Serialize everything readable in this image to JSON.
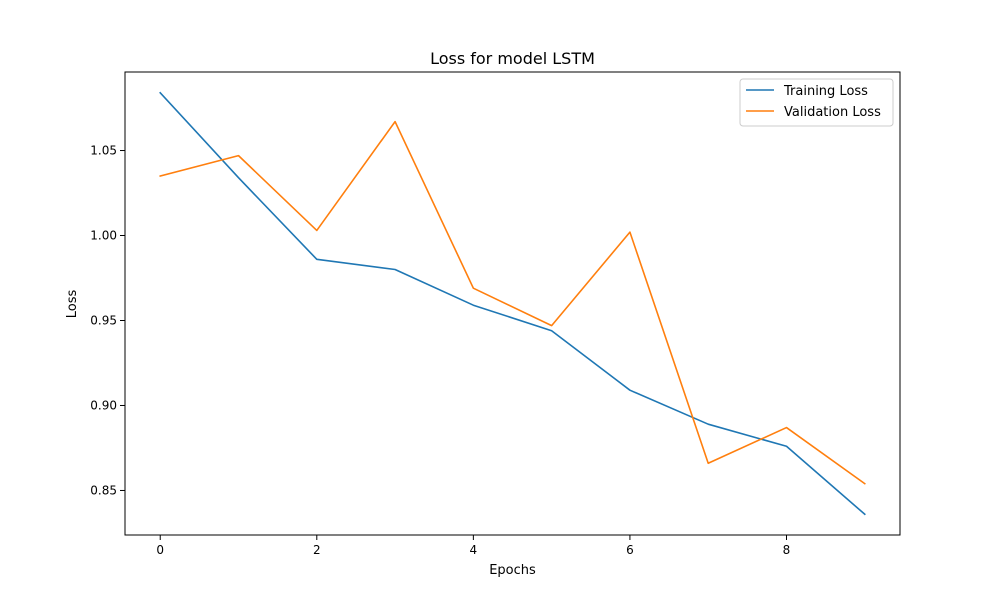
{
  "chart_data": {
    "type": "line",
    "title": "Loss for model LSTM",
    "xlabel": "Epochs",
    "ylabel": "Loss",
    "x": [
      0,
      1,
      2,
      3,
      4,
      5,
      6,
      7,
      8,
      9
    ],
    "series": [
      {
        "name": "Training Loss",
        "color": "#1f77b4",
        "values": [
          1.084,
          1.034,
          0.986,
          0.98,
          0.959,
          0.944,
          0.909,
          0.889,
          0.876,
          0.836
        ]
      },
      {
        "name": "Validation Loss",
        "color": "#ff7f0e",
        "values": [
          1.035,
          1.047,
          1.003,
          1.067,
          0.969,
          0.947,
          1.002,
          0.866,
          0.887,
          0.854
        ]
      }
    ],
    "xlim": [
      -0.45,
      9.45
    ],
    "ylim": [
      0.8238,
      1.0962
    ],
    "xticks": [
      0,
      2,
      4,
      6,
      8
    ],
    "xtick_labels": [
      "0",
      "2",
      "4",
      "6",
      "8"
    ],
    "yticks": [
      0.85,
      0.9,
      0.95,
      1.0,
      1.05
    ],
    "ytick_labels": [
      "0.85",
      "0.90",
      "0.95",
      "1.00",
      "1.05"
    ],
    "grid": false,
    "legend_position": "top-right"
  }
}
